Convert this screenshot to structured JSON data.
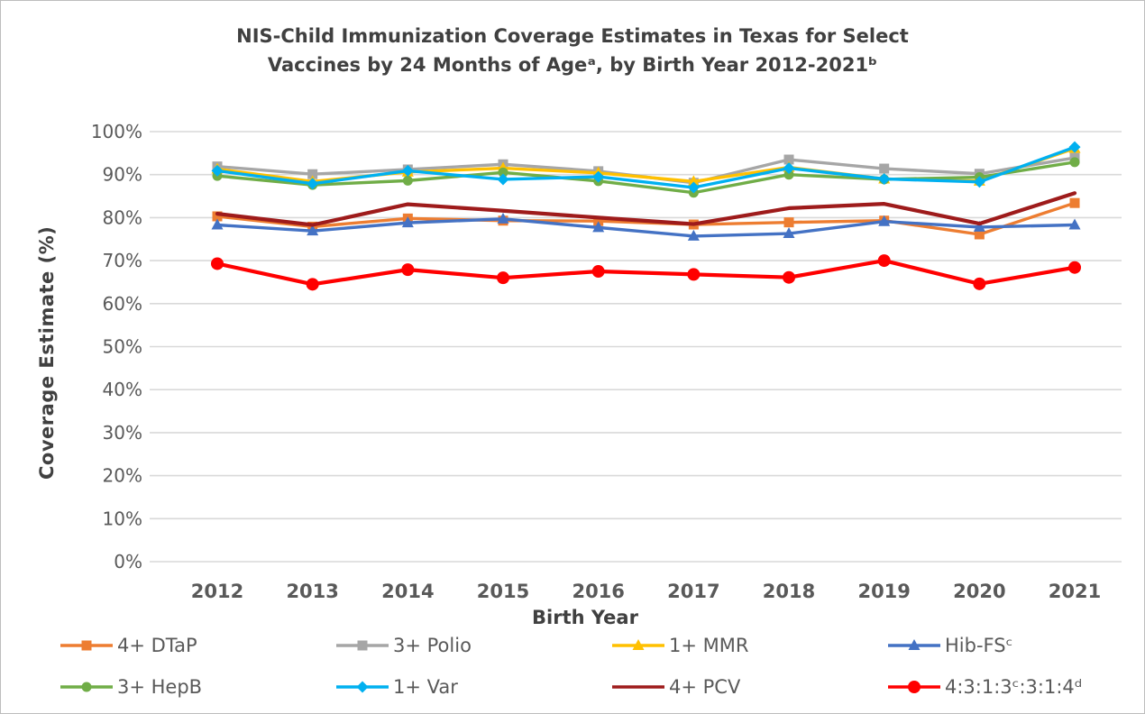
{
  "page": {
    "background": "#FFFFFF",
    "border_color": "#BDBDBD"
  },
  "chart_data": {
    "type": "line",
    "title": "NIS-Child Immunization Coverage Estimates in Texas for Select\nVaccines by 24 Months of Ageᵃ, by Birth Year 2012-2021ᵇ",
    "xlabel": "Birth Year",
    "ylabel": "Coverage Estimate (%)",
    "ylim": [
      0,
      100
    ],
    "y_tick_step": 10,
    "y_tick_labels": [
      "0%",
      "10%",
      "20%",
      "30%",
      "40%",
      "50%",
      "60%",
      "70%",
      "80%",
      "90%",
      "100%"
    ],
    "grid": "horizontal",
    "grid_color": "#D9D9D9",
    "tick_label_color": "#595959",
    "legend_position": "bottom",
    "categories": [
      "2012",
      "2013",
      "2014",
      "2015",
      "2016",
      "2017",
      "2018",
      "2019",
      "2020",
      "2021"
    ],
    "series": [
      {
        "name": "4+ DTaP",
        "color": "#ED7D31",
        "marker": "square",
        "values": [
          80.3,
          77.9,
          79.8,
          79.3,
          79.2,
          78.4,
          78.9,
          79.3,
          76.1,
          83.4
        ]
      },
      {
        "name": "3+ Polio",
        "color": "#A6A6A6",
        "marker": "square",
        "values": [
          91.9,
          90.1,
          91.2,
          92.4,
          90.8,
          88.1,
          93.5,
          91.4,
          90.2,
          93.9
        ]
      },
      {
        "name": "1+ MMR",
        "color": "#FFC000",
        "marker": "triangle",
        "values": [
          91.3,
          88.4,
          90.6,
          91.5,
          90.4,
          88.4,
          91.7,
          89.0,
          88.5,
          96.1
        ]
      },
      {
        "name": "Hib-FSᶜ",
        "color": "#4472C4",
        "marker": "triangle",
        "values": [
          78.3,
          76.9,
          78.8,
          79.7,
          77.7,
          75.7,
          76.3,
          79.1,
          77.8,
          78.3
        ]
      },
      {
        "name": "3+ HepB",
        "color": "#70AD47",
        "marker": "circle",
        "values": [
          89.7,
          87.6,
          88.6,
          90.5,
          88.5,
          85.8,
          90.0,
          88.9,
          89.4,
          92.9
        ]
      },
      {
        "name": "1+ Var",
        "color": "#00B0F0",
        "marker": "diamond",
        "values": [
          90.9,
          87.9,
          90.9,
          88.9,
          89.5,
          87.0,
          91.5,
          89.0,
          88.3,
          96.4
        ]
      },
      {
        "name": "4+ PCV",
        "color": "#9E1B1B",
        "marker": "none",
        "values": [
          80.9,
          78.3,
          83.1,
          81.6,
          80.0,
          78.5,
          82.2,
          83.2,
          78.6,
          85.7
        ]
      },
      {
        "name": "4:3:1:3ᶜ:3:1:4ᵈ",
        "color": "#FF0000",
        "marker": "circle",
        "values": [
          69.3,
          64.5,
          67.9,
          66.0,
          67.5,
          66.8,
          66.1,
          70.0,
          64.6,
          68.4
        ]
      }
    ]
  }
}
